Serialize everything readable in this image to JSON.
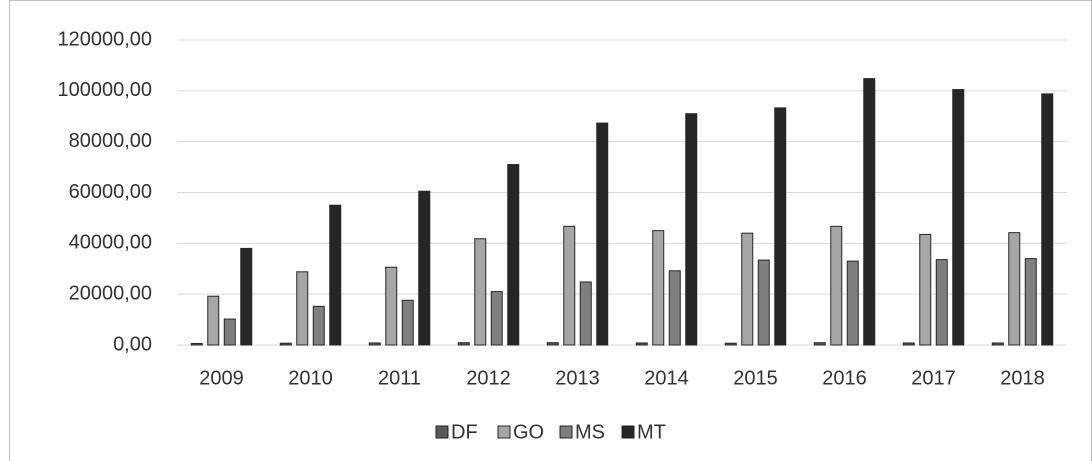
{
  "chart_data": {
    "type": "bar",
    "categories": [
      "2009",
      "2010",
      "2011",
      "2012",
      "2013",
      "2014",
      "2015",
      "2016",
      "2017",
      "2018"
    ],
    "series": [
      {
        "name": "DF",
        "color": "#595959",
        "values": [
          600,
          700,
          800,
          900,
          900,
          800,
          700,
          900,
          800,
          800
        ]
      },
      {
        "name": "GO",
        "color": "#a6a6a6",
        "values": [
          19200,
          28800,
          30600,
          41800,
          46700,
          45000,
          44000,
          46700,
          43500,
          44200
        ]
      },
      {
        "name": "MS",
        "color": "#7f7f7f",
        "values": [
          10200,
          15200,
          17600,
          21000,
          24800,
          29200,
          33400,
          33000,
          33600,
          34000
        ]
      },
      {
        "name": "MT",
        "color": "#262626",
        "values": [
          38000,
          55000,
          60500,
          71000,
          87300,
          91000,
          93300,
          104800,
          100500,
          98800
        ]
      }
    ],
    "ylim": [
      0,
      120000
    ],
    "yticks": [
      {
        "value": 0,
        "label": "0,00"
      },
      {
        "value": 20000,
        "label": "20000,00"
      },
      {
        "value": 40000,
        "label": "40000,00"
      },
      {
        "value": 60000,
        "label": "60000,00"
      },
      {
        "value": 80000,
        "label": "80000,00"
      },
      {
        "value": 100000,
        "label": "100000,00"
      },
      {
        "value": 120000,
        "label": "120000,00"
      }
    ],
    "grid": true,
    "legend": "bottom"
  }
}
